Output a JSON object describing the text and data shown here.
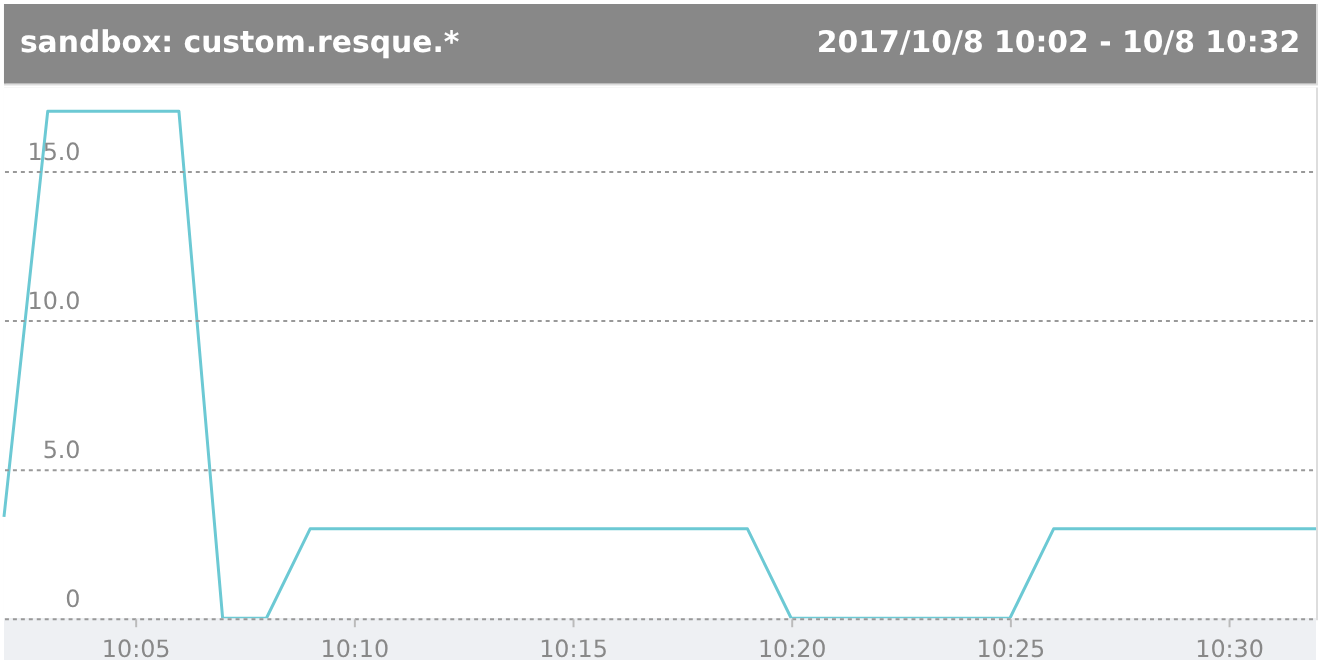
{
  "chart_data": {
    "type": "line",
    "title": "sandbox: custom.resque.*",
    "subtitle": "2017/10/8 10:02 - 10/8 10:32",
    "x": [
      "2017-10-08T10:02",
      "2017-10-08T10:03",
      "2017-10-08T10:06",
      "2017-10-08T10:07",
      "2017-10-08T10:08",
      "2017-10-08T10:09",
      "2017-10-08T10:19",
      "2017-10-08T10:20",
      "2017-10-08T10:25",
      "2017-10-08T10:26",
      "2017-10-08T10:32"
    ],
    "series": [
      {
        "color": "#6cc9d4",
        "values": [
          3.4,
          17,
          17,
          0,
          0,
          3,
          3,
          0,
          0,
          3,
          3
        ]
      }
    ],
    "xlim": [
      "2017-10-08T10:02",
      "2017-10-08T10:32"
    ],
    "xticks": [
      {
        "value": "2017-10-08T10:05",
        "label": "10:05"
      },
      {
        "value": "2017-10-08T10:10",
        "label": "10:10"
      },
      {
        "value": "2017-10-08T10:15",
        "label": "10:15"
      },
      {
        "value": "2017-10-08T10:20",
        "label": "10:20"
      },
      {
        "value": "2017-10-08T10:25",
        "label": "10:25"
      },
      {
        "value": "2017-10-08T10:30",
        "label": "10:30"
      }
    ],
    "ylim": [
      0,
      17.8
    ],
    "yticks": [
      0,
      {
        "value": 5,
        "label": "5.0"
      },
      {
        "value": 10,
        "label": "10.0"
      },
      {
        "value": 15,
        "label": "15.0"
      }
    ],
    "grid": "y"
  }
}
